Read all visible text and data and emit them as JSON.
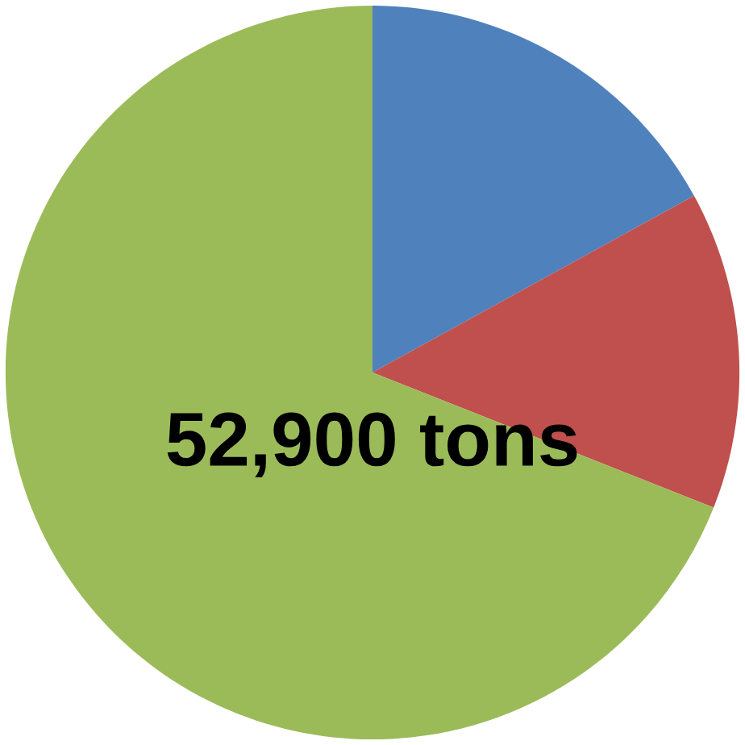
{
  "chart_data": {
    "type": "pie",
    "categories": [
      null,
      null,
      null
    ],
    "values": [
      17,
      14,
      69
    ],
    "colors": [
      "#4f81bd",
      "#c0504d",
      "#9bbb59"
    ],
    "annotations": [
      "52,900 tons"
    ]
  }
}
